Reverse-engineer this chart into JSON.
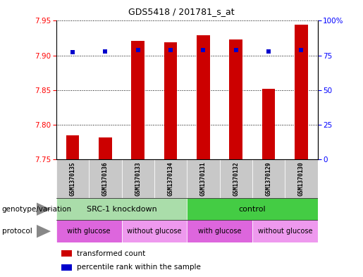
{
  "title": "GDS5418 / 201781_s_at",
  "samples": [
    "GSM1370135",
    "GSM1370136",
    "GSM1370133",
    "GSM1370134",
    "GSM1370131",
    "GSM1370132",
    "GSM1370129",
    "GSM1370130"
  ],
  "bar_values": [
    7.785,
    7.782,
    7.921,
    7.919,
    7.929,
    7.923,
    7.852,
    7.944
  ],
  "bar_base": 7.75,
  "percentile_values": [
    7.905,
    7.906,
    7.908,
    7.908,
    7.908,
    7.908,
    7.906,
    7.908
  ],
  "ylim_left": [
    7.75,
    7.95
  ],
  "ylim_right": [
    0,
    100
  ],
  "yticks_left": [
    7.75,
    7.8,
    7.85,
    7.9,
    7.95
  ],
  "yticks_right": [
    0,
    25,
    50,
    75,
    100
  ],
  "ytick_labels_right": [
    "0",
    "25",
    "50",
    "75",
    "100%"
  ],
  "bar_color": "#CC0000",
  "percentile_color": "#0000CC",
  "genotype_groups": [
    {
      "label": "SRC-1 knockdown",
      "start": 0,
      "end": 4,
      "color": "#AADDAA"
    },
    {
      "label": "control",
      "start": 4,
      "end": 8,
      "color": "#44CC44"
    }
  ],
  "protocol_groups": [
    {
      "label": "with glucose",
      "start": 0,
      "end": 2,
      "color": "#DD66DD"
    },
    {
      "label": "without glucose",
      "start": 2,
      "end": 4,
      "color": "#EE99EE"
    },
    {
      "label": "with glucose",
      "start": 4,
      "end": 6,
      "color": "#DD66DD"
    },
    {
      "label": "without glucose",
      "start": 6,
      "end": 8,
      "color": "#EE99EE"
    }
  ],
  "left_labels": [
    "genotype/variation",
    "protocol"
  ],
  "legend_labels": [
    "transformed count",
    "percentile rank within the sample"
  ],
  "legend_colors": [
    "#CC0000",
    "#0000CC"
  ]
}
